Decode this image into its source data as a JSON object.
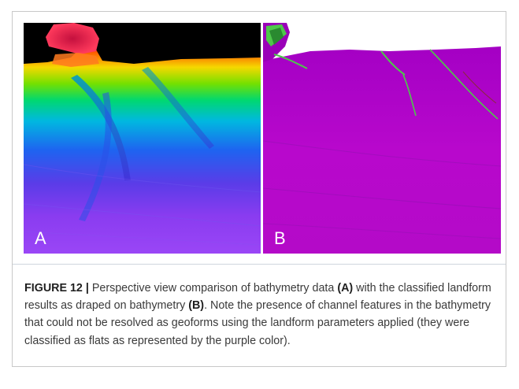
{
  "figure": {
    "panel_a_label": "A",
    "panel_b_label": "B",
    "caption": {
      "figure_number": "FIGURE 12 |",
      "text_1": " Perspective view comparison of bathymetry data ",
      "ref_a": "(A)",
      "text_2": " with the classified landform results as draped on bathymetry ",
      "ref_b": "(B)",
      "text_3": ". Note the presence of channel features in the bathymetry that could not be resolved as geoforms using the landform parameters applied (they were classified as flats as represented by the purple color)."
    },
    "colors": {
      "background_sky": "#000000",
      "flats": "#b400c8",
      "ridge_highlight": "#4ec84a",
      "peak": "#e8155a"
    }
  }
}
